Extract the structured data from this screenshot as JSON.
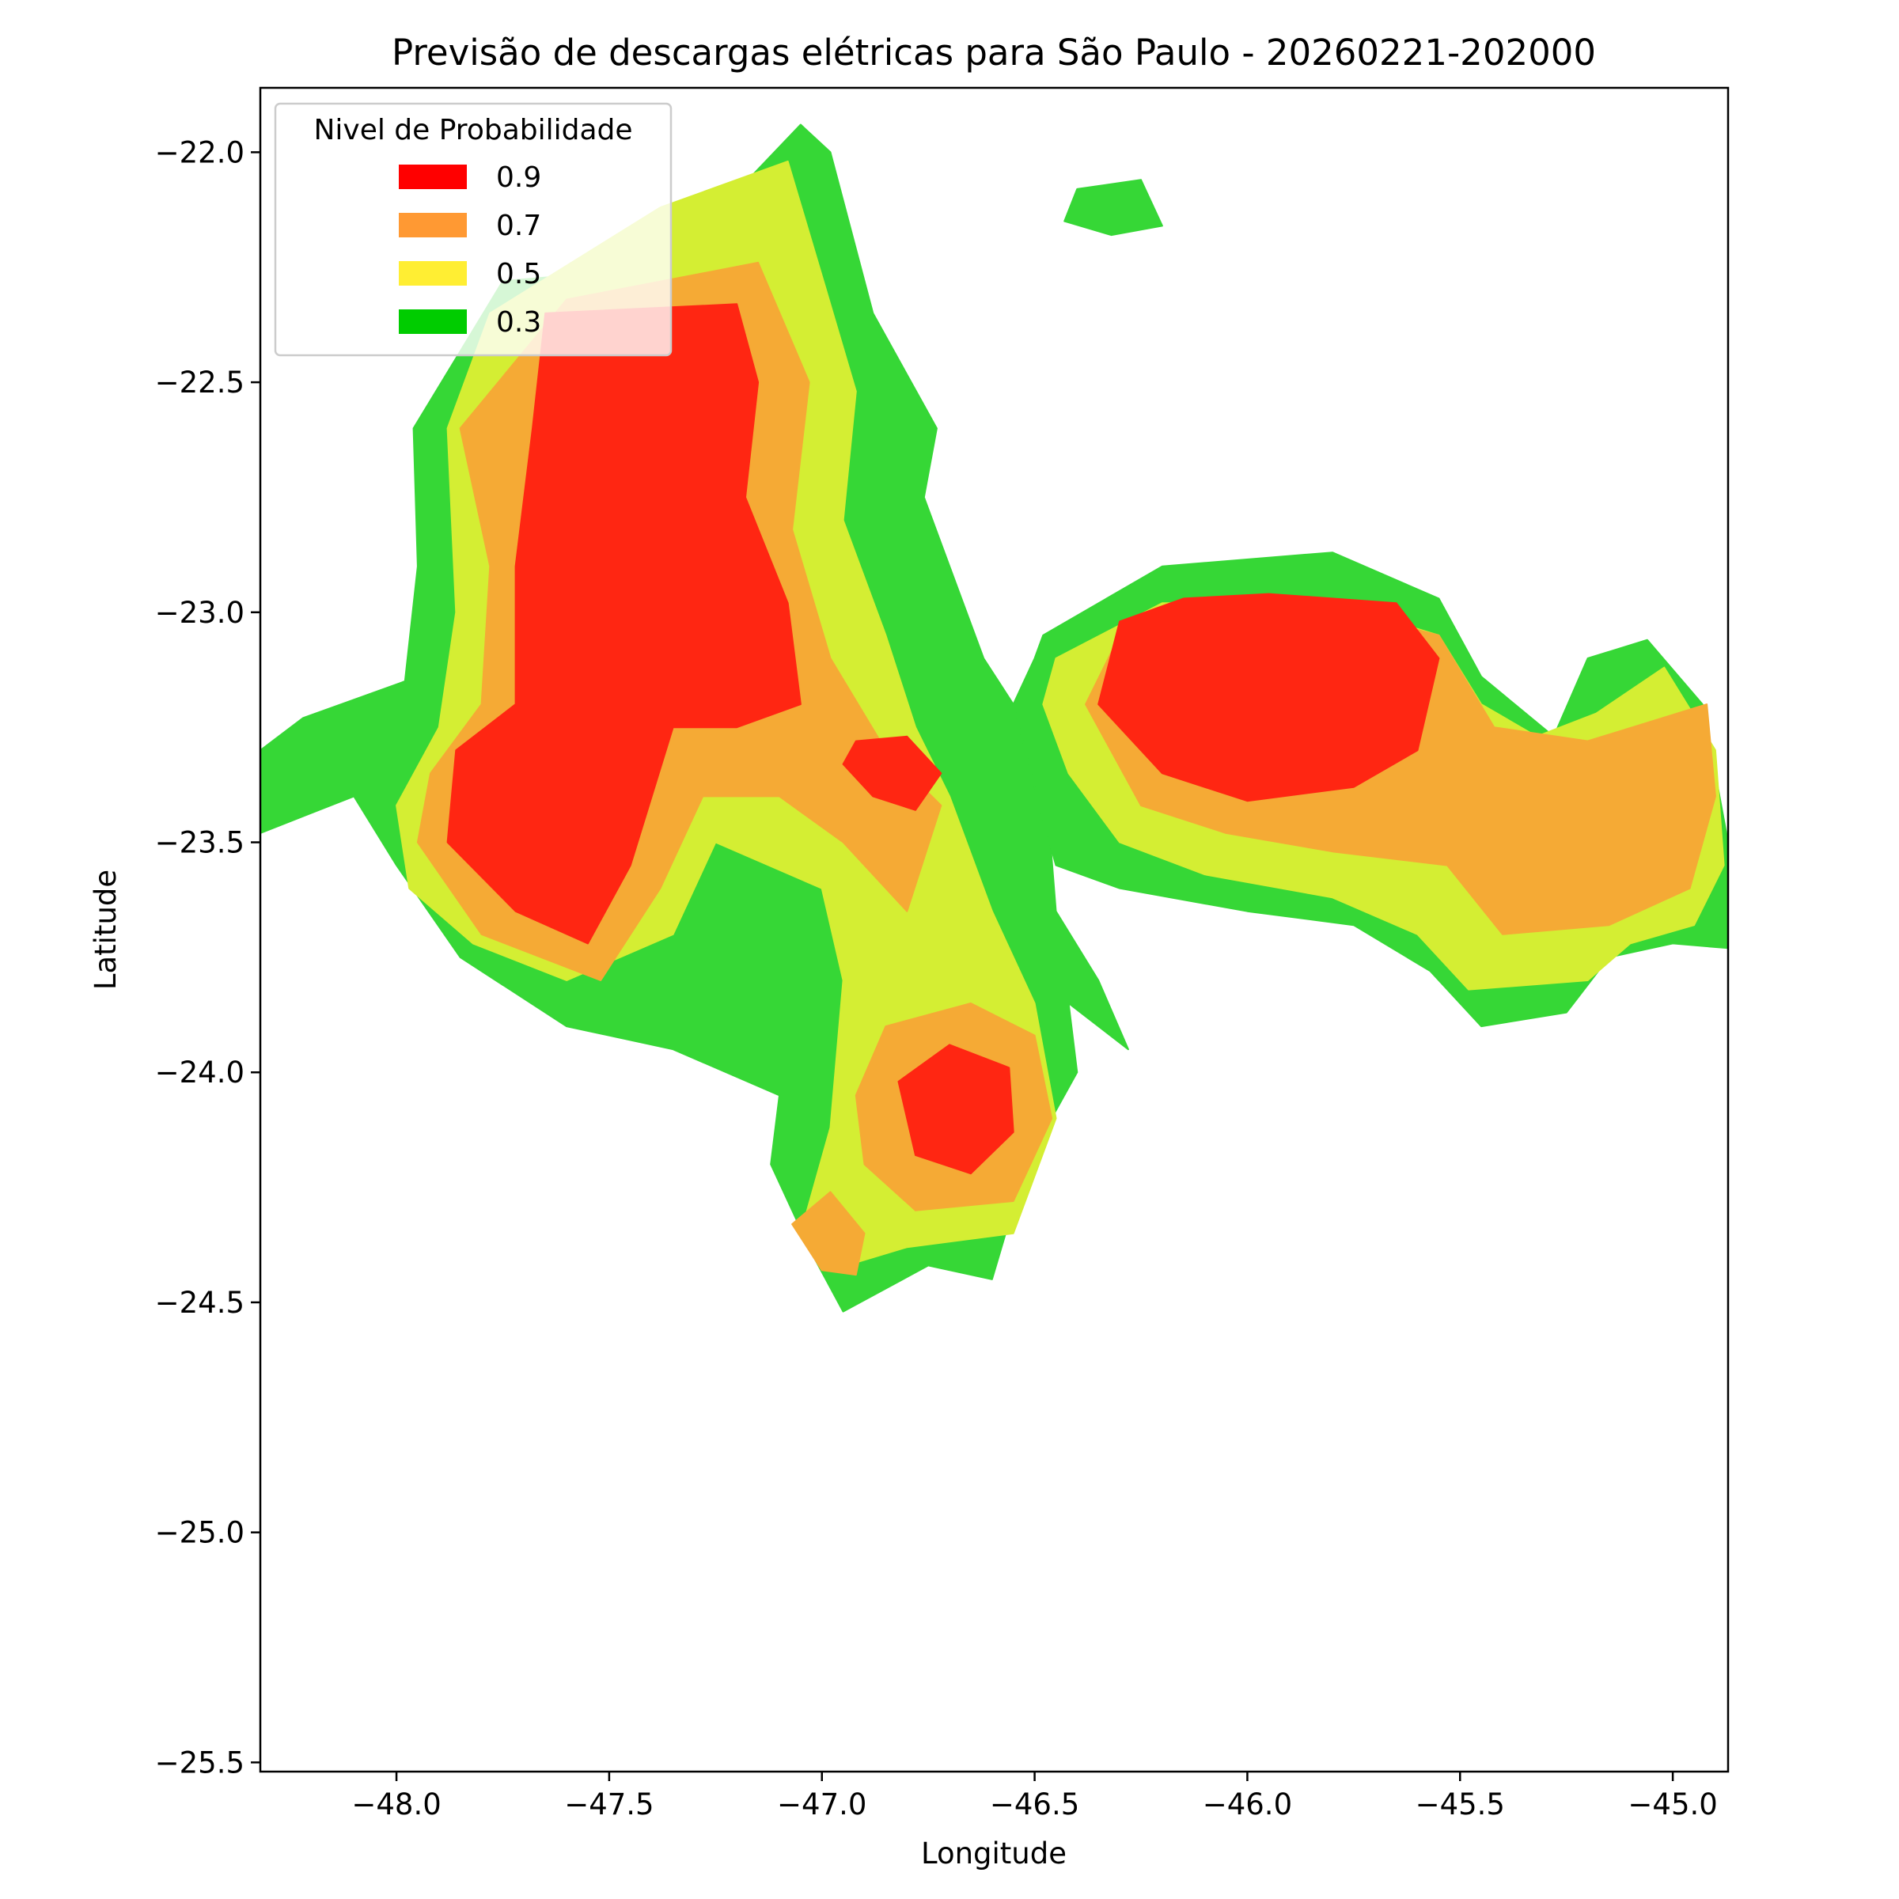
{
  "chart_data": {
    "type": "contourf",
    "title": "Previsão de descargas elétricas para São Paulo - 20260221-202000",
    "xlabel": "Longitude",
    "ylabel": "Latitude",
    "xlim": [
      -48.32,
      -44.87
    ],
    "ylim": [
      -25.52,
      -21.86
    ],
    "x_ticks": [
      -48.0,
      -47.5,
      -47.0,
      -46.5,
      -46.0,
      -45.5,
      -45.0
    ],
    "x_tick_labels": [
      "−48.0",
      "−47.5",
      "−47.0",
      "−46.5",
      "−46.0",
      "−45.5",
      "−45.0"
    ],
    "y_ticks": [
      -22.0,
      -22.5,
      -23.0,
      -23.5,
      -24.0,
      -24.5,
      -25.0,
      -25.5
    ],
    "y_tick_labels": [
      "−22.0",
      "−22.5",
      "−23.0",
      "−23.5",
      "−24.0",
      "−24.5",
      "−25.0",
      "−25.5"
    ],
    "grid": false,
    "legend": {
      "title": "Nivel de Probabilidade",
      "placement": "top-left",
      "entries": [
        {
          "label": "0.9",
          "color": "#ff0000"
        },
        {
          "label": "0.7",
          "color": "#ff9933"
        },
        {
          "label": "0.5",
          "color": "#ffee33"
        },
        {
          "label": "0.3",
          "color": "#00cc00"
        }
      ]
    },
    "levels": [
      {
        "level": 0.3,
        "fill": "#36d736",
        "polygons": [
          [
            [
              -47.37,
              -22.25
            ],
            [
              -47.05,
              -21.94
            ],
            [
              -46.98,
              -22.0
            ],
            [
              -46.88,
              -22.35
            ],
            [
              -46.73,
              -22.6
            ],
            [
              -46.76,
              -22.75
            ],
            [
              -46.62,
              -23.1
            ],
            [
              -46.48,
              -23.3
            ],
            [
              -46.45,
              -23.65
            ],
            [
              -46.35,
              -23.8
            ],
            [
              -46.28,
              -23.95
            ],
            [
              -46.42,
              -23.85
            ],
            [
              -46.4,
              -24.0
            ],
            [
              -46.52,
              -24.2
            ],
            [
              -46.6,
              -24.45
            ],
            [
              -46.75,
              -24.42
            ],
            [
              -46.95,
              -24.52
            ],
            [
              -47.02,
              -24.4
            ],
            [
              -47.12,
              -24.2
            ],
            [
              -47.1,
              -24.05
            ],
            [
              -47.35,
              -23.95
            ],
            [
              -47.6,
              -23.9
            ],
            [
              -47.85,
              -23.75
            ],
            [
              -48.0,
              -23.55
            ],
            [
              -48.1,
              -23.4
            ],
            [
              -48.32,
              -23.48
            ],
            [
              -48.32,
              -23.3
            ],
            [
              -48.22,
              -23.23
            ],
            [
              -47.98,
              -23.15
            ],
            [
              -47.95,
              -22.9
            ],
            [
              -47.96,
              -22.6
            ],
            [
              -47.75,
              -22.28
            ]
          ],
          [
            [
              -46.48,
              -23.05
            ],
            [
              -46.2,
              -22.9
            ],
            [
              -45.8,
              -22.87
            ],
            [
              -45.55,
              -22.97
            ],
            [
              -45.45,
              -23.14
            ],
            [
              -45.28,
              -23.27
            ],
            [
              -45.2,
              -23.1
            ],
            [
              -45.06,
              -23.06
            ],
            [
              -44.93,
              -23.2
            ],
            [
              -44.87,
              -23.5
            ],
            [
              -44.87,
              -23.73
            ],
            [
              -45.0,
              -23.72
            ],
            [
              -45.15,
              -23.75
            ],
            [
              -45.25,
              -23.87
            ],
            [
              -45.45,
              -23.9
            ],
            [
              -45.57,
              -23.78
            ],
            [
              -45.75,
              -23.68
            ],
            [
              -46.0,
              -23.65
            ],
            [
              -46.3,
              -23.6
            ],
            [
              -46.45,
              -23.55
            ],
            [
              -46.48,
              -23.45
            ],
            [
              -46.55,
              -23.2
            ],
            [
              -46.5,
              -23.1
            ]
          ],
          [
            [
              -46.4,
              -22.08
            ],
            [
              -46.25,
              -22.06
            ],
            [
              -46.2,
              -22.16
            ],
            [
              -46.32,
              -22.18
            ],
            [
              -46.43,
              -22.15
            ]
          ]
        ]
      },
      {
        "level": 0.5,
        "fill": "#d4ee33",
        "polygons": [
          [
            [
              -47.38,
              -22.12
            ],
            [
              -47.08,
              -22.02
            ],
            [
              -46.99,
              -22.3
            ],
            [
              -46.92,
              -22.52
            ],
            [
              -46.95,
              -22.8
            ],
            [
              -46.85,
              -23.05
            ],
            [
              -46.78,
              -23.25
            ],
            [
              -46.7,
              -23.4
            ],
            [
              -46.6,
              -23.65
            ],
            [
              -46.5,
              -23.85
            ],
            [
              -46.45,
              -24.1
            ],
            [
              -46.55,
              -24.35
            ],
            [
              -46.8,
              -24.38
            ],
            [
              -46.98,
              -24.43
            ],
            [
              -47.05,
              -24.35
            ],
            [
              -46.98,
              -24.12
            ],
            [
              -46.95,
              -23.8
            ],
            [
              -47.0,
              -23.6
            ],
            [
              -47.25,
              -23.5
            ],
            [
              -47.35,
              -23.7
            ],
            [
              -47.6,
              -23.8
            ],
            [
              -47.82,
              -23.72
            ],
            [
              -47.97,
              -23.6
            ],
            [
              -48.0,
              -23.42
            ],
            [
              -47.9,
              -23.25
            ],
            [
              -47.86,
              -23.0
            ],
            [
              -47.88,
              -22.6
            ],
            [
              -47.78,
              -22.35
            ]
          ],
          [
            [
              -46.45,
              -23.1
            ],
            [
              -46.2,
              -22.98
            ],
            [
              -45.8,
              -22.98
            ],
            [
              -45.55,
              -23.05
            ],
            [
              -45.45,
              -23.2
            ],
            [
              -45.32,
              -23.27
            ],
            [
              -45.18,
              -23.22
            ],
            [
              -45.02,
              -23.12
            ],
            [
              -44.9,
              -23.3
            ],
            [
              -44.88,
              -23.55
            ],
            [
              -44.95,
              -23.68
            ],
            [
              -45.1,
              -23.72
            ],
            [
              -45.2,
              -23.8
            ],
            [
              -45.48,
              -23.82
            ],
            [
              -45.6,
              -23.7
            ],
            [
              -45.8,
              -23.62
            ],
            [
              -46.1,
              -23.57
            ],
            [
              -46.3,
              -23.5
            ],
            [
              -46.42,
              -23.35
            ],
            [
              -46.48,
              -23.2
            ]
          ]
        ]
      },
      {
        "level": 0.7,
        "fill": "#f5aa35",
        "polygons": [
          [
            [
              -47.6,
              -22.32
            ],
            [
              -47.15,
              -22.24
            ],
            [
              -47.03,
              -22.5
            ],
            [
              -47.07,
              -22.82
            ],
            [
              -46.98,
              -23.1
            ],
            [
              -46.85,
              -23.3
            ],
            [
              -46.72,
              -23.42
            ],
            [
              -46.8,
              -23.65
            ],
            [
              -46.95,
              -23.5
            ],
            [
              -47.1,
              -23.4
            ],
            [
              -47.28,
              -23.4
            ],
            [
              -47.38,
              -23.6
            ],
            [
              -47.52,
              -23.8
            ],
            [
              -47.8,
              -23.7
            ],
            [
              -47.95,
              -23.5
            ],
            [
              -47.92,
              -23.35
            ],
            [
              -47.8,
              -23.2
            ],
            [
              -47.78,
              -22.9
            ],
            [
              -47.85,
              -22.6
            ]
          ],
          [
            [
              -46.65,
              -23.85
            ],
            [
              -46.5,
              -23.92
            ],
            [
              -46.46,
              -24.1
            ],
            [
              -46.55,
              -24.28
            ],
            [
              -46.78,
              -24.3
            ],
            [
              -46.9,
              -24.2
            ],
            [
              -46.92,
              -24.05
            ],
            [
              -46.85,
              -23.9
            ]
          ],
          [
            [
              -46.98,
              -24.26
            ],
            [
              -46.9,
              -24.35
            ],
            [
              -46.92,
              -24.44
            ],
            [
              -47.0,
              -24.43
            ],
            [
              -47.07,
              -24.33
            ]
          ],
          [
            [
              -45.85,
              -22.98
            ],
            [
              -45.55,
              -23.05
            ],
            [
              -45.42,
              -23.25
            ],
            [
              -45.2,
              -23.28
            ],
            [
              -44.92,
              -23.2
            ],
            [
              -44.9,
              -23.4
            ],
            [
              -44.96,
              -23.6
            ],
            [
              -45.15,
              -23.68
            ],
            [
              -45.4,
              -23.7
            ],
            [
              -45.53,
              -23.55
            ],
            [
              -45.8,
              -23.52
            ],
            [
              -46.05,
              -23.48
            ],
            [
              -46.25,
              -23.42
            ],
            [
              -46.38,
              -23.2
            ],
            [
              -46.3,
              -23.05
            ],
            [
              -46.05,
              -22.97
            ]
          ]
        ]
      },
      {
        "level": 0.9,
        "fill": "#ff2612",
        "polygons": [
          [
            [
              -47.65,
              -22.35
            ],
            [
              -47.2,
              -22.33
            ],
            [
              -47.15,
              -22.5
            ],
            [
              -47.18,
              -22.75
            ],
            [
              -47.08,
              -22.98
            ],
            [
              -47.05,
              -23.2
            ],
            [
              -47.2,
              -23.25
            ],
            [
              -47.35,
              -23.25
            ],
            [
              -47.45,
              -23.55
            ],
            [
              -47.55,
              -23.72
            ],
            [
              -47.72,
              -23.65
            ],
            [
              -47.88,
              -23.5
            ],
            [
              -47.86,
              -23.3
            ],
            [
              -47.72,
              -23.2
            ],
            [
              -47.72,
              -22.9
            ],
            [
              -47.68,
              -22.6
            ]
          ],
          [
            [
              -46.92,
              -23.28
            ],
            [
              -46.8,
              -23.27
            ],
            [
              -46.72,
              -23.35
            ],
            [
              -46.78,
              -23.43
            ],
            [
              -46.88,
              -23.4
            ],
            [
              -46.95,
              -23.33
            ]
          ],
          [
            [
              -46.7,
              -23.94
            ],
            [
              -46.56,
              -23.99
            ],
            [
              -46.55,
              -24.13
            ],
            [
              -46.65,
              -24.22
            ],
            [
              -46.78,
              -24.18
            ],
            [
              -46.82,
              -24.02
            ]
          ],
          [
            [
              -45.95,
              -22.96
            ],
            [
              -45.65,
              -22.98
            ],
            [
              -45.55,
              -23.1
            ],
            [
              -45.6,
              -23.3
            ],
            [
              -45.75,
              -23.38
            ],
            [
              -46.0,
              -23.41
            ],
            [
              -46.2,
              -23.35
            ],
            [
              -46.35,
              -23.2
            ],
            [
              -46.3,
              -23.02
            ],
            [
              -46.15,
              -22.97
            ]
          ]
        ]
      }
    ]
  }
}
